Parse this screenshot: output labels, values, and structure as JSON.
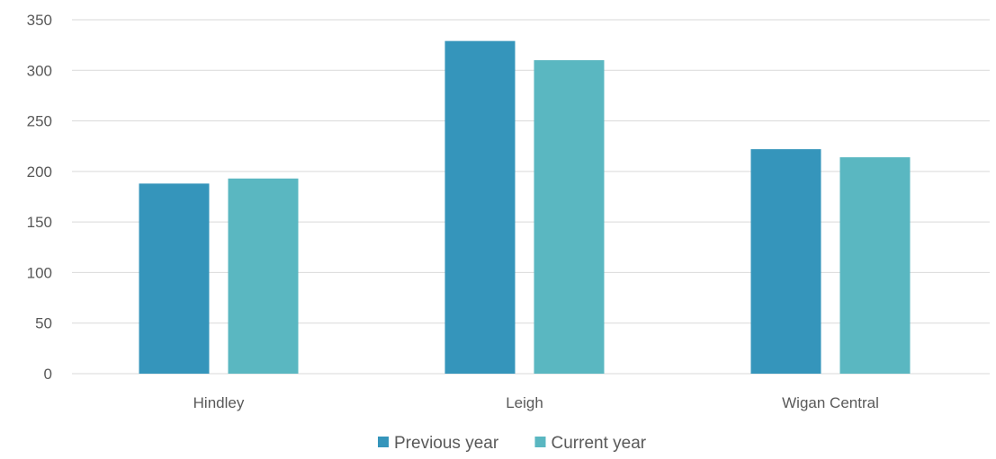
{
  "chart_data": {
    "type": "bar",
    "categories": [
      "Hindley",
      "Leigh",
      "Wigan Central"
    ],
    "series": [
      {
        "name": "Previous year",
        "values": [
          188,
          329,
          222
        ],
        "color": "#3595bb"
      },
      {
        "name": "Current year",
        "values": [
          193,
          310,
          214
        ],
        "color": "#5ab7c1"
      }
    ],
    "title": "",
    "xlabel": "",
    "ylabel": "",
    "ylim": [
      0,
      350
    ],
    "yticks": [
      0,
      50,
      100,
      150,
      200,
      250,
      300,
      350
    ],
    "grid": true,
    "legend": "bottom"
  }
}
